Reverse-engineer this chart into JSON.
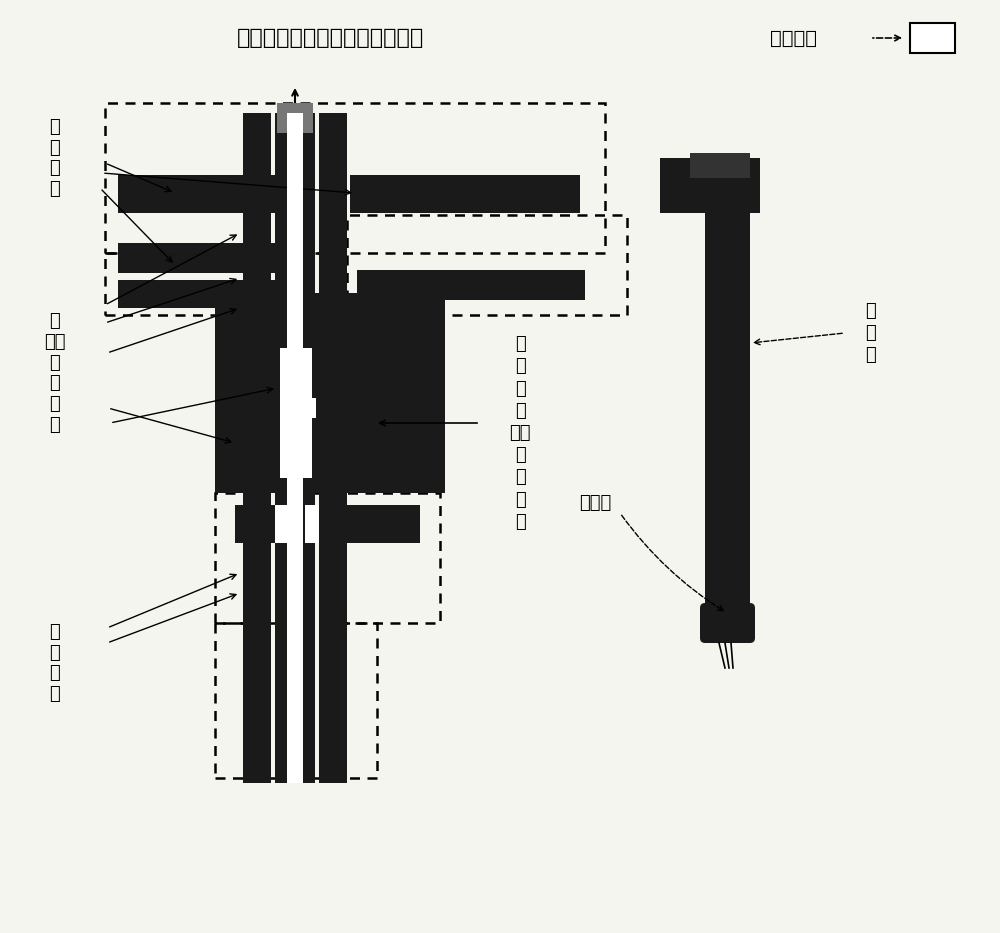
{
  "bg_color": "#f5f5f0",
  "title_text": "卡槽连接件或可移动直角支撑架",
  "control_text": "控制系统",
  "label_lower_rail": "下\n层\n导\n轨",
  "label_embed": "镶\n嵌卡\n槽\n或\n角\n槽",
  "label_upper_rail": "上\n层\n导\n轨",
  "label_mechanism": "模\n板\n缝\n制\n材料\n夹\n拖\n机\n构",
  "label_mid_press": "中压角",
  "label_sewing": "缝\n纫\n机"
}
